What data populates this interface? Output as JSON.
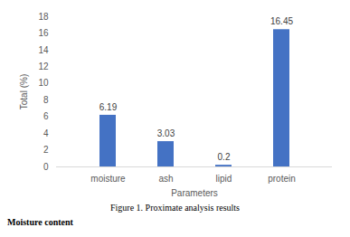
{
  "chart_data": {
    "type": "bar",
    "title": "Figure 1. Proximate analysis results",
    "x_label": "Parameters",
    "y_label": "Total (%)",
    "categories": [
      "moisture",
      "ash",
      "lipid",
      "protein"
    ],
    "values": [
      6.19,
      3.03,
      0.2,
      16.45
    ],
    "color": "#4472c4",
    "ylim": [
      0,
      18
    ],
    "yticks": [
      0,
      2,
      4,
      6,
      8,
      10,
      12,
      14,
      16,
      18
    ],
    "grid": false,
    "data_labels": true,
    "annotations": [
      "Moisture content"
    ]
  }
}
